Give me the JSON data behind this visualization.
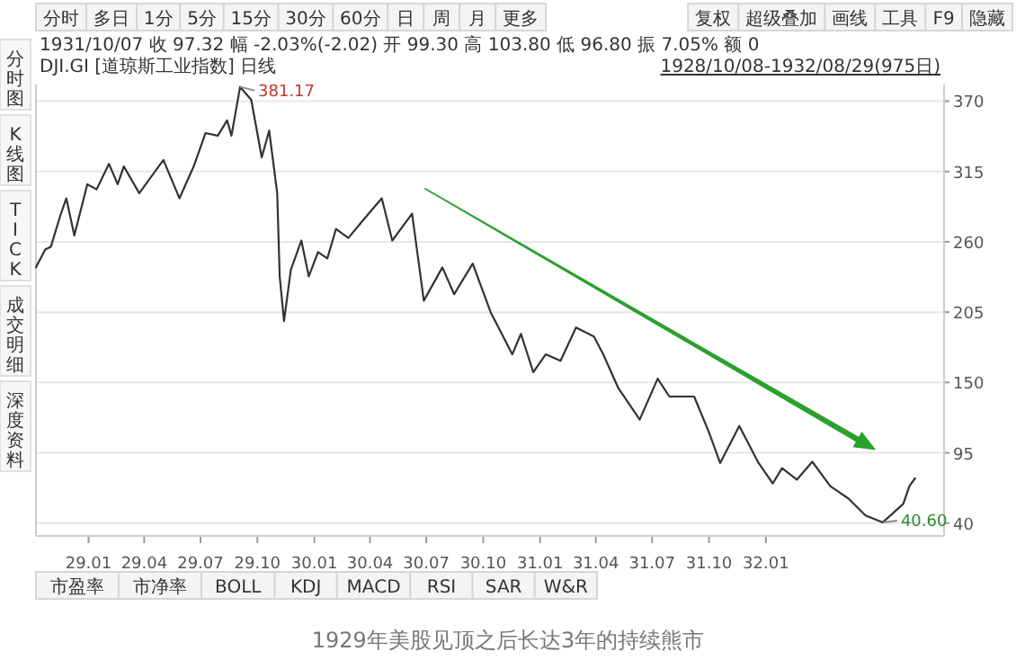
{
  "chart_data": {
    "type": "line",
    "title": "DJI.GI [道琼斯工业指数] 日线",
    "x": [
      "1928-10-08",
      "1928-10-23",
      "1928-11-01",
      "1928-11-16",
      "1928-11-26",
      "1928-12-09",
      "1928-12-30",
      "1929-01-14",
      "1929-02-03",
      "1929-02-17",
      "1929-02-27",
      "1929-03-24",
      "1929-05-02",
      "1929-05-28",
      "1929-06-20",
      "1929-07-09",
      "1929-07-29",
      "1929-08-13",
      "1929-08-20",
      "1929-09-03",
      "1929-09-21",
      "1929-10-08",
      "1929-10-20",
      "1929-11-02",
      "1929-11-06",
      "1929-11-13",
      "1929-11-24",
      "1929-12-11",
      "1929-12-23",
      "1930-01-07",
      "1930-01-22",
      "1930-02-05",
      "1930-02-25",
      "1930-03-21",
      "1930-04-20",
      "1930-05-07",
      "1930-06-08",
      "1930-06-27",
      "1930-07-27",
      "1930-08-15",
      "1930-09-14",
      "1930-10-13",
      "1930-11-17",
      "1930-12-01",
      "1930-12-21",
      "1931-01-10",
      "1931-02-03",
      "1931-02-28",
      "1931-03-29",
      "1931-04-13",
      "1931-05-07",
      "1931-06-11",
      "1931-07-10",
      "1931-07-29",
      "1931-09-07",
      "1931-10-01",
      "1931-10-19",
      "1931-11-19",
      "1931-12-19",
      "1932-01-12",
      "1932-01-27",
      "1932-02-20",
      "1932-03-16",
      "1932-04-14",
      "1932-05-14",
      "1932-06-10",
      "1932-07-08",
      "1932-08-10",
      "1932-08-20",
      "1932-08-29"
    ],
    "series": [
      {
        "color": "#333333",
        "values": [
          240,
          254,
          256,
          280,
          294,
          265,
          305,
          301,
          321,
          305,
          319,
          298,
          324,
          294,
          319,
          345,
          343,
          355,
          343,
          381.17,
          371,
          326,
          347,
          298,
          233,
          198,
          238,
          261,
          233,
          252,
          247,
          270,
          263,
          277,
          294,
          261,
          282,
          214,
          240,
          219,
          243,
          205,
          172,
          188,
          158,
          172,
          167,
          193,
          186,
          172,
          146,
          121,
          153,
          139,
          139,
          111,
          87,
          116,
          88,
          71,
          83,
          74,
          88,
          69,
          59,
          46,
          40.6,
          55,
          69,
          75
        ]
      }
    ],
    "xlim": [
      "1928-10-08",
      "1932-10-15"
    ],
    "xticks": [
      {
        "value": "1929-01-01",
        "label": "29.01"
      },
      {
        "value": "1929-04-01",
        "label": "29.04"
      },
      {
        "value": "1929-07-01",
        "label": "29.07"
      },
      {
        "value": "1929-10-01",
        "label": "29.10"
      },
      {
        "value": "1930-01-01",
        "label": "30.01"
      },
      {
        "value": "1930-04-01",
        "label": "30.04"
      },
      {
        "value": "1930-07-01",
        "label": "30.07"
      },
      {
        "value": "1930-10-01",
        "label": "30.10"
      },
      {
        "value": "1931-01-01",
        "label": "31.01"
      },
      {
        "value": "1931-04-01",
        "label": "31.04"
      },
      {
        "value": "1931-07-01",
        "label": "31.07"
      },
      {
        "value": "1931-10-01",
        "label": "31.10"
      },
      {
        "value": "1932-01-01",
        "label": "32.01"
      }
    ],
    "ylim": [
      30,
      383
    ],
    "yticks": [
      40,
      95,
      150,
      205,
      260,
      315,
      370
    ],
    "grid": "y",
    "annotations": [
      "分时",
      "多日",
      "1分",
      "5分",
      "15分",
      "30分",
      "60分",
      "日",
      "周",
      "月",
      "更多",
      "复权",
      "超级叠加",
      "画线",
      "工具",
      "F9",
      "隐藏",
      "分时图",
      "K线图",
      "TICK",
      "成交明细",
      "深度资料",
      "1931/10/07 收 97.32 幅 -2.03%(-2.02) 开 99.30 高 103.80 低 96.80 振 7.05% 额 0",
      "1928/10/08-1932/08/29(975日)",
      "市盈率",
      "市净率",
      "BOLL",
      "KDJ",
      "MACD",
      "RSI",
      "SAR",
      "W&R",
      "1929年美股见顶之后长达3年的持续熊市",
      {
        "text": "381.17",
        "x": "1929-09-03",
        "y": 381.17
      },
      {
        "text": "40.60",
        "x": "1932-07-08",
        "y": 40.6
      }
    ]
  }
}
